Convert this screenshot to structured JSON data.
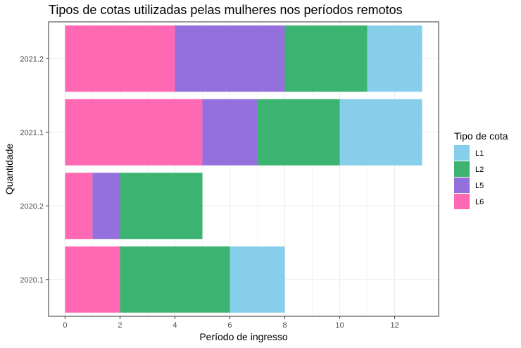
{
  "chart_data": {
    "type": "bar",
    "orientation": "horizontal",
    "stacked": true,
    "title": "Tipos de cotas utilizadas pelas mulheres nos períodos remotos",
    "xlabel": "Período de ingresso",
    "ylabel": "Quantidade",
    "categories": [
      "2020.1",
      "2020.2",
      "2021.1",
      "2021.2"
    ],
    "xlim": [
      -0.6,
      13.6
    ],
    "xticks": [
      0,
      2,
      4,
      6,
      8,
      10,
      12
    ],
    "grid": true,
    "legend_position": "right",
    "legend_title": "Tipo de cota",
    "stack_order": [
      "L6",
      "L5",
      "L2",
      "L1"
    ],
    "series": [
      {
        "name": "L1",
        "color": "#87CEEB",
        "values": [
          2,
          0,
          3,
          2
        ]
      },
      {
        "name": "L2",
        "color": "#3CB371",
        "values": [
          4,
          3,
          3,
          3
        ]
      },
      {
        "name": "L5",
        "color": "#9370DB",
        "values": [
          0,
          1,
          2,
          4
        ]
      },
      {
        "name": "L6",
        "color": "#FF69B4",
        "values": [
          2,
          1,
          5,
          4
        ]
      }
    ]
  }
}
